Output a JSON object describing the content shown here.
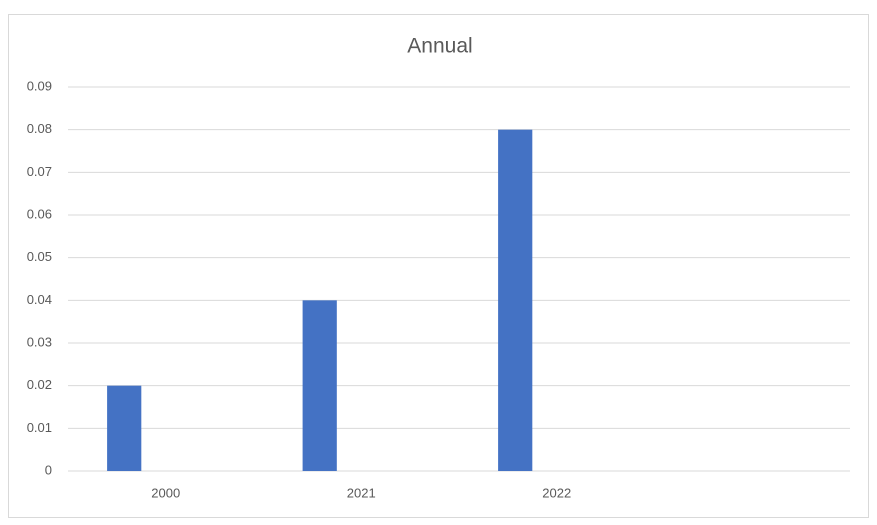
{
  "chart_data": {
    "type": "bar",
    "title": "Annual",
    "categories": [
      "2000",
      "2021",
      "2022",
      null
    ],
    "values": [
      0.02,
      0.04,
      0.08,
      null
    ],
    "color": "#4472c4",
    "ylim": [
      0,
      0.09
    ],
    "yticks": [
      0,
      0.01,
      0.02,
      0.03,
      0.04,
      0.05,
      0.06,
      0.07,
      0.08,
      0.09
    ],
    "grid": true
  }
}
